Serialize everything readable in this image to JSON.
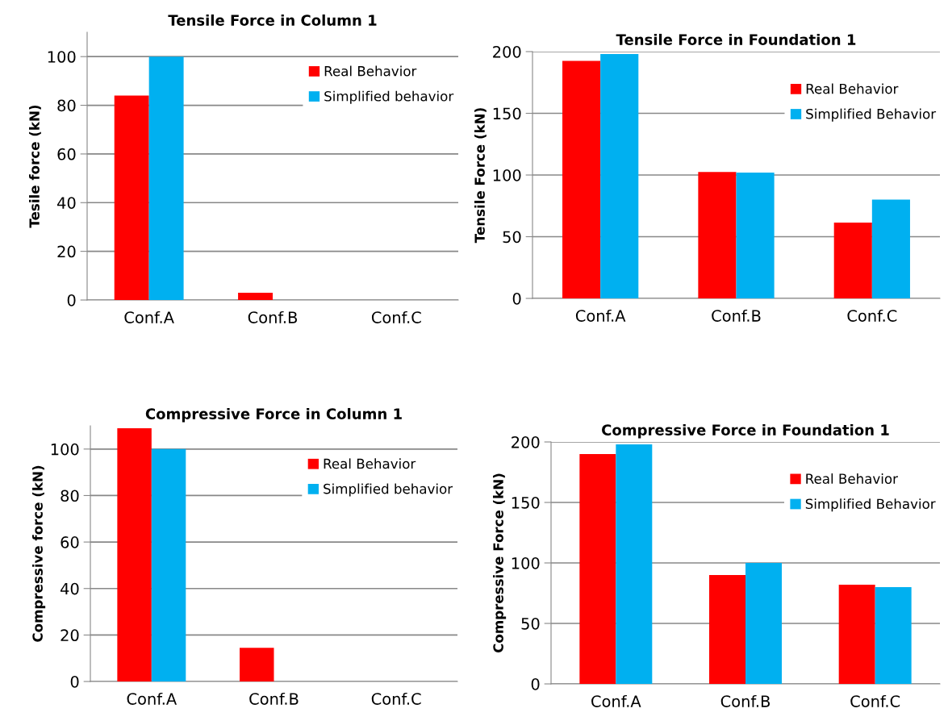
{
  "chart_data": [
    {
      "type": "bar",
      "title": "Tensile Force in Column 1",
      "ylabel": "Tesile force (kN)",
      "categories": [
        "Conf.A",
        "Conf.B",
        "Conf.C"
      ],
      "ylim": [
        0,
        110
      ],
      "yticks": [
        0,
        20,
        40,
        60,
        80,
        100
      ],
      "grid": "y",
      "legend": "top right",
      "series": [
        {
          "name": "Real Behavior",
          "color": "#ff0000",
          "values": [
            84,
            3,
            0
          ]
        },
        {
          "name": "Simplified behavior",
          "color": "#00b0f0",
          "values": [
            100,
            0,
            0
          ]
        }
      ]
    },
    {
      "type": "bar",
      "title": "Tensile Force in Foundation 1",
      "ylabel": "Tensile Force (kN)",
      "categories": [
        "Conf.A",
        "Conf.B",
        "Conf.C"
      ],
      "ylim": [
        0,
        200
      ],
      "yticks": [
        0,
        50,
        100,
        150,
        200
      ],
      "grid": "y",
      "legend": "top right",
      "series": [
        {
          "name": "Real Behavior",
          "color": "#ff0000",
          "values": [
            192.5,
            102.5,
            61.5
          ]
        },
        {
          "name": "Simplified Behavior",
          "color": "#00b0f0",
          "values": [
            198,
            102,
            80
          ]
        }
      ]
    },
    {
      "type": "bar",
      "title": "Compressive Force in Column 1",
      "ylabel": "Compressive force (kN)",
      "categories": [
        "Conf.A",
        "Conf.B",
        "Conf.C"
      ],
      "ylim": [
        0,
        110
      ],
      "yticks": [
        0,
        20,
        40,
        60,
        80,
        100
      ],
      "grid": "y",
      "legend": "top right",
      "series": [
        {
          "name": "Real Behavior",
          "color": "#ff0000",
          "values": [
            109,
            14.5,
            0
          ]
        },
        {
          "name": "Simplified behavior",
          "color": "#00b0f0",
          "values": [
            100,
            0,
            0
          ]
        }
      ]
    },
    {
      "type": "bar",
      "title": "Compressive Force in Foundation 1",
      "ylabel": "Compressive Force (kN)",
      "categories": [
        "Conf.A",
        "Conf.B",
        "Conf.C"
      ],
      "ylim": [
        0,
        200
      ],
      "yticks": [
        0,
        50,
        100,
        150,
        200
      ],
      "grid": "y",
      "legend": "top right",
      "series": [
        {
          "name": "Real Behavior",
          "color": "#ff0000",
          "values": [
            190,
            90,
            82
          ]
        },
        {
          "name": "Simplified Behavior",
          "color": "#00b0f0",
          "values": [
            198,
            100,
            80
          ]
        }
      ]
    }
  ]
}
